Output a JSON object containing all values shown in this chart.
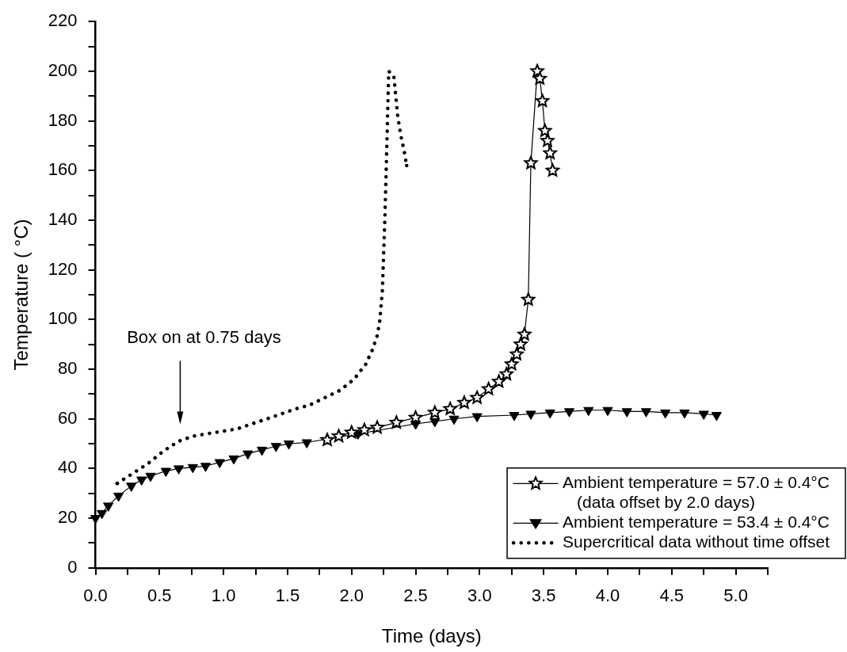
{
  "chart_data": {
    "type": "line",
    "xlabel": "Time (days)",
    "ylabel": "Temperature ( °C)",
    "xlim": [
      0,
      5.25
    ],
    "xticks": [
      {
        "value": 0,
        "label": "0.0"
      },
      {
        "value": 0.25,
        "label": null
      },
      {
        "value": 0.5,
        "label": "0.5"
      },
      {
        "value": 0.75,
        "label": null
      },
      {
        "value": 1,
        "label": "1.0"
      },
      {
        "value": 1.25,
        "label": null
      },
      {
        "value": 1.5,
        "label": "1.5"
      },
      {
        "value": 1.75,
        "label": null
      },
      {
        "value": 2,
        "label": "2.0"
      },
      {
        "value": 2.25,
        "label": null
      },
      {
        "value": 2.5,
        "label": "2.5"
      },
      {
        "value": 2.75,
        "label": null
      },
      {
        "value": 3,
        "label": "3.0"
      },
      {
        "value": 3.25,
        "label": null
      },
      {
        "value": 3.5,
        "label": "3.5"
      },
      {
        "value": 3.75,
        "label": null
      },
      {
        "value": 4,
        "label": "4.0"
      },
      {
        "value": 4.25,
        "label": null
      },
      {
        "value": 4.5,
        "label": "4.5"
      },
      {
        "value": 4.75,
        "label": null
      },
      {
        "value": 5,
        "label": "5.0"
      },
      {
        "value": 5.25,
        "label": null
      }
    ],
    "ylim": [
      0,
      220
    ],
    "yticks": [
      0,
      {
        "value": 10,
        "label": null
      },
      20,
      {
        "value": 30,
        "label": null
      },
      40,
      {
        "value": 50,
        "label": null
      },
      60,
      {
        "value": 70,
        "label": null
      },
      80,
      {
        "value": 90,
        "label": null
      },
      100,
      {
        "value": 110,
        "label": null
      },
      120,
      {
        "value": 130,
        "label": null
      },
      140,
      {
        "value": 150,
        "label": null
      },
      160,
      {
        "value": 170,
        "label": null
      },
      180,
      {
        "value": 190,
        "label": null
      },
      200,
      {
        "value": 210,
        "label": null
      },
      220
    ],
    "grid": false,
    "legend": "bottom right",
    "annotations": [
      "Box on at 0.75 days"
    ],
    "series": [
      {
        "name": "Ambient temperature = 57.0 ± 0.4°C\n(data offset by 2.0 days)",
        "color": "#000000",
        "marker": "star",
        "line_style": "solid",
        "x": [
          1.81,
          1.9,
          2.0,
          2.1,
          2.2,
          2.35,
          2.5,
          2.65,
          2.77,
          2.88,
          2.98,
          3.07,
          3.15,
          3.21,
          3.25,
          3.29,
          3.32,
          3.35,
          3.38,
          3.4,
          3.45,
          3.47,
          3.49,
          3.51,
          3.53,
          3.55,
          3.57
        ],
        "values": [
          51.5,
          53,
          54.5,
          55.5,
          56.5,
          58.5,
          60.5,
          62.5,
          64,
          66.5,
          68.5,
          72,
          75,
          78,
          82,
          86,
          90,
          94,
          108,
          163,
          200,
          197,
          188,
          176,
          172,
          167,
          160
        ]
      },
      {
        "name": "Ambient temperature = 53.4 ± 0.4°C",
        "color": "#000000",
        "marker": "triangle",
        "line_style": "solid",
        "x": [
          0,
          0.05,
          0.1,
          0.18,
          0.28,
          0.36,
          0.43,
          0.55,
          0.65,
          0.76,
          0.86,
          0.97,
          1.08,
          1.19,
          1.3,
          1.41,
          1.51,
          1.65,
          2.05,
          2.5,
          2.65,
          2.8,
          2.98,
          3.27,
          3.4,
          3.55,
          3.7,
          3.85,
          4.0,
          4.15,
          4.3,
          4.45,
          4.6,
          4.75,
          4.85
        ],
        "values": [
          20,
          22,
          25,
          29,
          33,
          35.5,
          37,
          39,
          40,
          40.5,
          41,
          42.5,
          44,
          46,
          47.5,
          49,
          50,
          50.5,
          54,
          58,
          59,
          60,
          61,
          61.5,
          62,
          62.5,
          63,
          63.5,
          63.5,
          63,
          63,
          62.5,
          62.5,
          62,
          61.5
        ]
      },
      {
        "name": "Supercritical data without time offset",
        "color": "#000000",
        "marker": "none",
        "line_style": "dotted",
        "x": [
          0.17,
          0.29,
          0.41,
          0.53,
          0.65,
          0.76,
          0.87,
          0.99,
          1.11,
          1.22,
          1.34,
          1.45,
          1.56,
          1.67,
          1.79,
          1.91,
          2.02,
          2.11,
          2.16,
          2.2,
          2.22,
          2.24,
          2.25,
          2.26,
          2.27,
          2.28,
          2.29,
          2.33,
          2.36,
          2.385,
          2.41,
          2.43
        ],
        "values": [
          34,
          38,
          42,
          47,
          51,
          53,
          54,
          55,
          56,
          58,
          60,
          62,
          64,
          65.5,
          68.5,
          71.5,
          76,
          82,
          87.5,
          93.5,
          99.5,
          111.5,
          126,
          141,
          160,
          180,
          200,
          198,
          182,
          174,
          168,
          162
        ]
      }
    ]
  }
}
